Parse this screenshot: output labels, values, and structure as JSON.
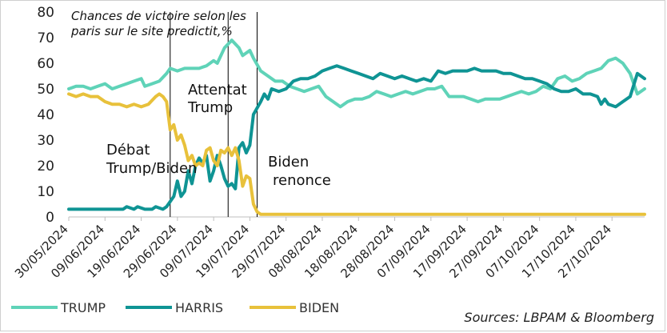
{
  "chart_data": {
    "type": "line",
    "subtitle_lines": [
      "Chances de victoire selon les",
      "paris sur le site predictit,%"
    ],
    "ylim": [
      0,
      80
    ],
    "yticks": [
      0,
      10,
      20,
      30,
      40,
      50,
      60,
      70,
      80
    ],
    "xlim": [
      "2024-05-30",
      "2024-11-05"
    ],
    "xticks": [
      "30/05/2024",
      "09/06/2024",
      "19/06/2024",
      "29/06/2024",
      "09/07/2024",
      "19/07/2024",
      "29/07/2024",
      "08/08/2024",
      "18/08/2024",
      "28/08/2024",
      "07/09/2024",
      "17/09/2024",
      "27/09/2024",
      "07/10/2024",
      "17/10/2024",
      "27/10/2024"
    ],
    "events": [
      {
        "date": "2024-06-27",
        "label_lines": [
          "Débat",
          "Trump/Biden"
        ]
      },
      {
        "date": "2024-07-13",
        "label_lines": [
          "Attentat",
          "Trump"
        ]
      },
      {
        "date": "2024-07-21",
        "label_lines": [
          "Biden",
          "renonce"
        ]
      }
    ],
    "series": [
      {
        "name": "TRUMP",
        "color": "#5fd3b8",
        "points": [
          [
            "2024-05-30",
            50
          ],
          [
            "2024-06-01",
            51
          ],
          [
            "2024-06-03",
            51
          ],
          [
            "2024-06-05",
            50
          ],
          [
            "2024-06-07",
            51
          ],
          [
            "2024-06-09",
            52
          ],
          [
            "2024-06-11",
            50
          ],
          [
            "2024-06-13",
            51
          ],
          [
            "2024-06-15",
            52
          ],
          [
            "2024-06-17",
            53
          ],
          [
            "2024-06-19",
            54
          ],
          [
            "2024-06-20",
            51
          ],
          [
            "2024-06-22",
            52
          ],
          [
            "2024-06-24",
            53
          ],
          [
            "2024-06-26",
            56
          ],
          [
            "2024-06-27",
            58
          ],
          [
            "2024-06-29",
            57
          ],
          [
            "2024-07-01",
            58
          ],
          [
            "2024-07-03",
            58
          ],
          [
            "2024-07-05",
            58
          ],
          [
            "2024-07-07",
            59
          ],
          [
            "2024-07-09",
            61
          ],
          [
            "2024-07-10",
            60
          ],
          [
            "2024-07-12",
            66
          ],
          [
            "2024-07-14",
            69
          ],
          [
            "2024-07-16",
            66
          ],
          [
            "2024-07-17",
            63
          ],
          [
            "2024-07-19",
            65
          ],
          [
            "2024-07-20",
            62
          ],
          [
            "2024-07-22",
            57
          ],
          [
            "2024-07-24",
            55
          ],
          [
            "2024-07-26",
            53
          ],
          [
            "2024-07-28",
            53
          ],
          [
            "2024-07-30",
            51
          ],
          [
            "2024-08-01",
            50
          ],
          [
            "2024-08-03",
            49
          ],
          [
            "2024-08-05",
            50
          ],
          [
            "2024-08-07",
            51
          ],
          [
            "2024-08-09",
            47
          ],
          [
            "2024-08-11",
            45
          ],
          [
            "2024-08-13",
            43
          ],
          [
            "2024-08-15",
            45
          ],
          [
            "2024-08-17",
            46
          ],
          [
            "2024-08-19",
            46
          ],
          [
            "2024-08-21",
            47
          ],
          [
            "2024-08-23",
            49
          ],
          [
            "2024-08-25",
            48
          ],
          [
            "2024-08-27",
            47
          ],
          [
            "2024-08-29",
            48
          ],
          [
            "2024-08-31",
            49
          ],
          [
            "2024-09-02",
            48
          ],
          [
            "2024-09-04",
            49
          ],
          [
            "2024-09-06",
            50
          ],
          [
            "2024-09-08",
            50
          ],
          [
            "2024-09-10",
            51
          ],
          [
            "2024-09-12",
            47
          ],
          [
            "2024-09-14",
            47
          ],
          [
            "2024-09-16",
            47
          ],
          [
            "2024-09-18",
            46
          ],
          [
            "2024-09-20",
            45
          ],
          [
            "2024-09-22",
            46
          ],
          [
            "2024-09-24",
            46
          ],
          [
            "2024-09-26",
            46
          ],
          [
            "2024-09-28",
            47
          ],
          [
            "2024-09-30",
            48
          ],
          [
            "2024-10-02",
            49
          ],
          [
            "2024-10-04",
            48
          ],
          [
            "2024-10-06",
            49
          ],
          [
            "2024-10-08",
            51
          ],
          [
            "2024-10-10",
            50
          ],
          [
            "2024-10-12",
            54
          ],
          [
            "2024-10-14",
            55
          ],
          [
            "2024-10-16",
            53
          ],
          [
            "2024-10-18",
            54
          ],
          [
            "2024-10-20",
            56
          ],
          [
            "2024-10-22",
            57
          ],
          [
            "2024-10-24",
            58
          ],
          [
            "2024-10-26",
            61
          ],
          [
            "2024-10-28",
            62
          ],
          [
            "2024-10-30",
            60
          ],
          [
            "2024-11-01",
            56
          ],
          [
            "2024-11-03",
            48
          ],
          [
            "2024-11-05",
            50
          ]
        ]
      },
      {
        "name": "HARRIS",
        "color": "#0f9494",
        "points": [
          [
            "2024-05-30",
            3
          ],
          [
            "2024-06-05",
            3
          ],
          [
            "2024-06-10",
            3
          ],
          [
            "2024-06-14",
            3
          ],
          [
            "2024-06-15",
            4
          ],
          [
            "2024-06-17",
            3
          ],
          [
            "2024-06-18",
            4
          ],
          [
            "2024-06-20",
            3
          ],
          [
            "2024-06-22",
            3
          ],
          [
            "2024-06-23",
            4
          ],
          [
            "2024-06-25",
            3
          ],
          [
            "2024-06-26",
            4
          ],
          [
            "2024-06-28",
            8
          ],
          [
            "2024-06-29",
            14
          ],
          [
            "2024-06-30",
            8
          ],
          [
            "2024-07-01",
            10
          ],
          [
            "2024-07-02",
            18
          ],
          [
            "2024-07-03",
            13
          ],
          [
            "2024-07-04",
            20
          ],
          [
            "2024-07-05",
            23
          ],
          [
            "2024-07-06",
            21
          ],
          [
            "2024-07-07",
            24
          ],
          [
            "2024-07-08",
            14
          ],
          [
            "2024-07-09",
            18
          ],
          [
            "2024-07-10",
            24
          ],
          [
            "2024-07-11",
            20
          ],
          [
            "2024-07-12",
            15
          ],
          [
            "2024-07-13",
            12
          ],
          [
            "2024-07-14",
            13
          ],
          [
            "2024-07-15",
            11
          ],
          [
            "2024-07-16",
            27
          ],
          [
            "2024-07-17",
            29
          ],
          [
            "2024-07-18",
            25
          ],
          [
            "2024-07-19",
            28
          ],
          [
            "2024-07-20",
            40
          ],
          [
            "2024-07-22",
            45
          ],
          [
            "2024-07-23",
            48
          ],
          [
            "2024-07-24",
            46
          ],
          [
            "2024-07-25",
            50
          ],
          [
            "2024-07-27",
            49
          ],
          [
            "2024-07-29",
            50
          ],
          [
            "2024-07-31",
            53
          ],
          [
            "2024-08-02",
            54
          ],
          [
            "2024-08-04",
            54
          ],
          [
            "2024-08-06",
            55
          ],
          [
            "2024-08-08",
            57
          ],
          [
            "2024-08-10",
            58
          ],
          [
            "2024-08-12",
            59
          ],
          [
            "2024-08-14",
            58
          ],
          [
            "2024-08-16",
            57
          ],
          [
            "2024-08-18",
            56
          ],
          [
            "2024-08-20",
            55
          ],
          [
            "2024-08-22",
            54
          ],
          [
            "2024-08-24",
            56
          ],
          [
            "2024-08-26",
            55
          ],
          [
            "2024-08-28",
            54
          ],
          [
            "2024-08-30",
            55
          ],
          [
            "2024-09-01",
            54
          ],
          [
            "2024-09-03",
            53
          ],
          [
            "2024-09-05",
            54
          ],
          [
            "2024-09-07",
            53
          ],
          [
            "2024-09-09",
            57
          ],
          [
            "2024-09-11",
            56
          ],
          [
            "2024-09-13",
            57
          ],
          [
            "2024-09-15",
            57
          ],
          [
            "2024-09-17",
            57
          ],
          [
            "2024-09-19",
            58
          ],
          [
            "2024-09-21",
            57
          ],
          [
            "2024-09-23",
            57
          ],
          [
            "2024-09-25",
            57
          ],
          [
            "2024-09-27",
            56
          ],
          [
            "2024-09-29",
            56
          ],
          [
            "2024-10-01",
            55
          ],
          [
            "2024-10-03",
            54
          ],
          [
            "2024-10-05",
            54
          ],
          [
            "2024-10-07",
            53
          ],
          [
            "2024-10-09",
            52
          ],
          [
            "2024-10-11",
            50
          ],
          [
            "2024-10-13",
            49
          ],
          [
            "2024-10-15",
            49
          ],
          [
            "2024-10-17",
            50
          ],
          [
            "2024-10-19",
            48
          ],
          [
            "2024-10-21",
            48
          ],
          [
            "2024-10-23",
            47
          ],
          [
            "2024-10-24",
            44
          ],
          [
            "2024-10-25",
            46
          ],
          [
            "2024-10-26",
            44
          ],
          [
            "2024-10-28",
            43
          ],
          [
            "2024-10-30",
            45
          ],
          [
            "2024-11-01",
            47
          ],
          [
            "2024-11-03",
            56
          ],
          [
            "2024-11-05",
            54
          ]
        ]
      },
      {
        "name": "BIDEN",
        "color": "#e8c13b",
        "points": [
          [
            "2024-05-30",
            48
          ],
          [
            "2024-06-01",
            47
          ],
          [
            "2024-06-03",
            48
          ],
          [
            "2024-06-05",
            47
          ],
          [
            "2024-06-07",
            47
          ],
          [
            "2024-06-09",
            45
          ],
          [
            "2024-06-11",
            44
          ],
          [
            "2024-06-13",
            44
          ],
          [
            "2024-06-15",
            43
          ],
          [
            "2024-06-17",
            44
          ],
          [
            "2024-06-19",
            43
          ],
          [
            "2024-06-21",
            44
          ],
          [
            "2024-06-23",
            47
          ],
          [
            "2024-06-24",
            48
          ],
          [
            "2024-06-25",
            47
          ],
          [
            "2024-06-26",
            45
          ],
          [
            "2024-06-27",
            34
          ],
          [
            "2024-06-28",
            36
          ],
          [
            "2024-06-29",
            30
          ],
          [
            "2024-06-30",
            32
          ],
          [
            "2024-07-01",
            28
          ],
          [
            "2024-07-02",
            22
          ],
          [
            "2024-07-03",
            24
          ],
          [
            "2024-07-04",
            20
          ],
          [
            "2024-07-05",
            21
          ],
          [
            "2024-07-06",
            20
          ],
          [
            "2024-07-07",
            26
          ],
          [
            "2024-07-08",
            27
          ],
          [
            "2024-07-09",
            22
          ],
          [
            "2024-07-10",
            20
          ],
          [
            "2024-07-11",
            26
          ],
          [
            "2024-07-12",
            25
          ],
          [
            "2024-07-13",
            27
          ],
          [
            "2024-07-14",
            24
          ],
          [
            "2024-07-15",
            27
          ],
          [
            "2024-07-16",
            22
          ],
          [
            "2024-07-17",
            12
          ],
          [
            "2024-07-18",
            16
          ],
          [
            "2024-07-19",
            15
          ],
          [
            "2024-07-20",
            5
          ],
          [
            "2024-07-21",
            2
          ],
          [
            "2024-07-22",
            1
          ],
          [
            "2024-08-01",
            1
          ],
          [
            "2024-09-01",
            1
          ],
          [
            "2024-10-01",
            1
          ],
          [
            "2024-11-05",
            1
          ]
        ]
      }
    ]
  },
  "source": "Sources: LBPAM & Bloomberg"
}
